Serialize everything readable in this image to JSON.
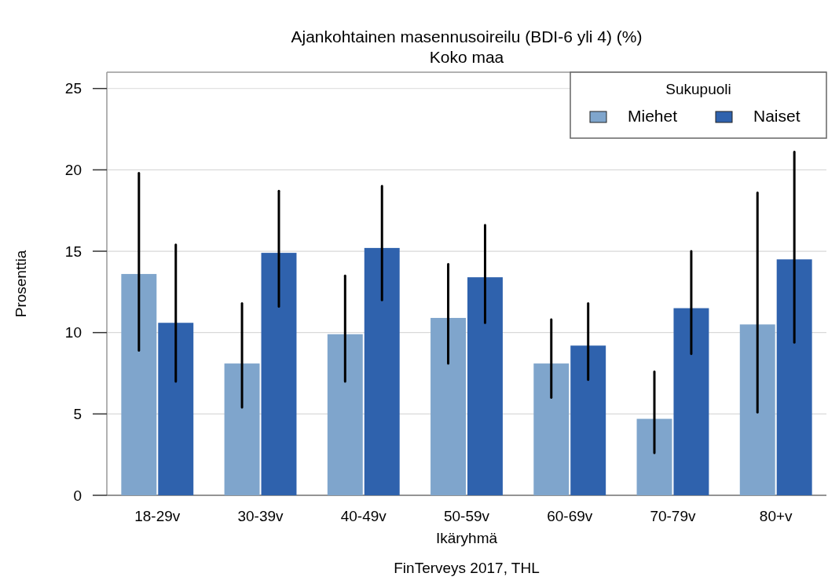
{
  "chart_data": {
    "type": "bar",
    "title": "Ajankohtainen masennusoireilu (BDI-6 yli 4) (%)",
    "subtitle": "Koko maa",
    "xlabel": "Ikäryhmä",
    "ylabel": "Prosenttia",
    "legend_title": "Sukupuoli",
    "categories": [
      "18-29v",
      "30-39v",
      "40-49v",
      "50-59v",
      "60-69v",
      "70-79v",
      "80+v"
    ],
    "series": [
      {
        "name": "Miehet",
        "color": "#7fa5cc",
        "values": [
          13.6,
          8.1,
          9.9,
          10.9,
          8.1,
          4.7,
          10.5
        ],
        "errors": [
          [
            8.9,
            19.8
          ],
          [
            5.4,
            11.8
          ],
          [
            7.0,
            13.5
          ],
          [
            8.1,
            14.2
          ],
          [
            6.0,
            10.8
          ],
          [
            2.6,
            7.6
          ],
          [
            5.1,
            18.6
          ]
        ]
      },
      {
        "name": "Naiset",
        "color": "#2f62ad",
        "values": [
          10.6,
          14.9,
          15.2,
          13.4,
          9.2,
          11.5,
          14.5
        ],
        "errors": [
          [
            7.0,
            15.4
          ],
          [
            11.6,
            18.7
          ],
          [
            12.0,
            19.0
          ],
          [
            10.6,
            16.6
          ],
          [
            7.1,
            11.8
          ],
          [
            8.7,
            15.0
          ],
          [
            9.4,
            21.1
          ]
        ]
      }
    ],
    "ylim": [
      0,
      26
    ],
    "yticks": [
      0,
      5,
      10,
      15,
      20,
      25
    ],
    "grid": "y",
    "legend": "top right",
    "annotations": [
      "FinTerveys 2017, THL"
    ]
  }
}
